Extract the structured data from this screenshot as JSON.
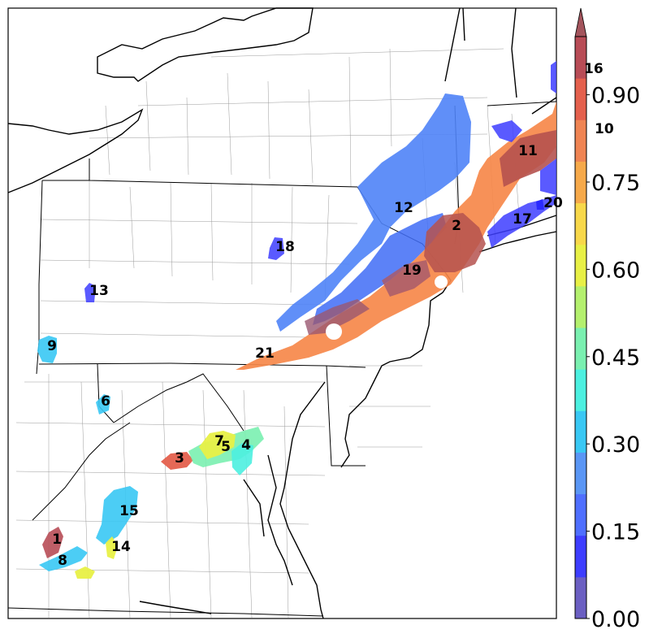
{
  "map": {
    "region_labels": [
      "1",
      "2",
      "3",
      "4",
      "5",
      "6",
      "7",
      "8",
      "9",
      "11",
      "12",
      "13",
      "14",
      "15",
      "17",
      "18",
      "19",
      "20",
      "21"
    ]
  },
  "colorbar": {
    "ticks": [
      "0.00",
      "0.15",
      "0.30",
      "0.45",
      "0.60",
      "0.75",
      "0.90"
    ],
    "side_labels": [
      "16",
      "10"
    ],
    "colors": [
      "#6b5fc2",
      "#3d3dff",
      "#4f6fff",
      "#5a96f5",
      "#39c8f4",
      "#4cf0e0",
      "#7af0b0",
      "#b4f06e",
      "#e8f046",
      "#f8d84a",
      "#f6a94a",
      "#ef8453",
      "#e4604d",
      "#b84c56"
    ]
  }
}
